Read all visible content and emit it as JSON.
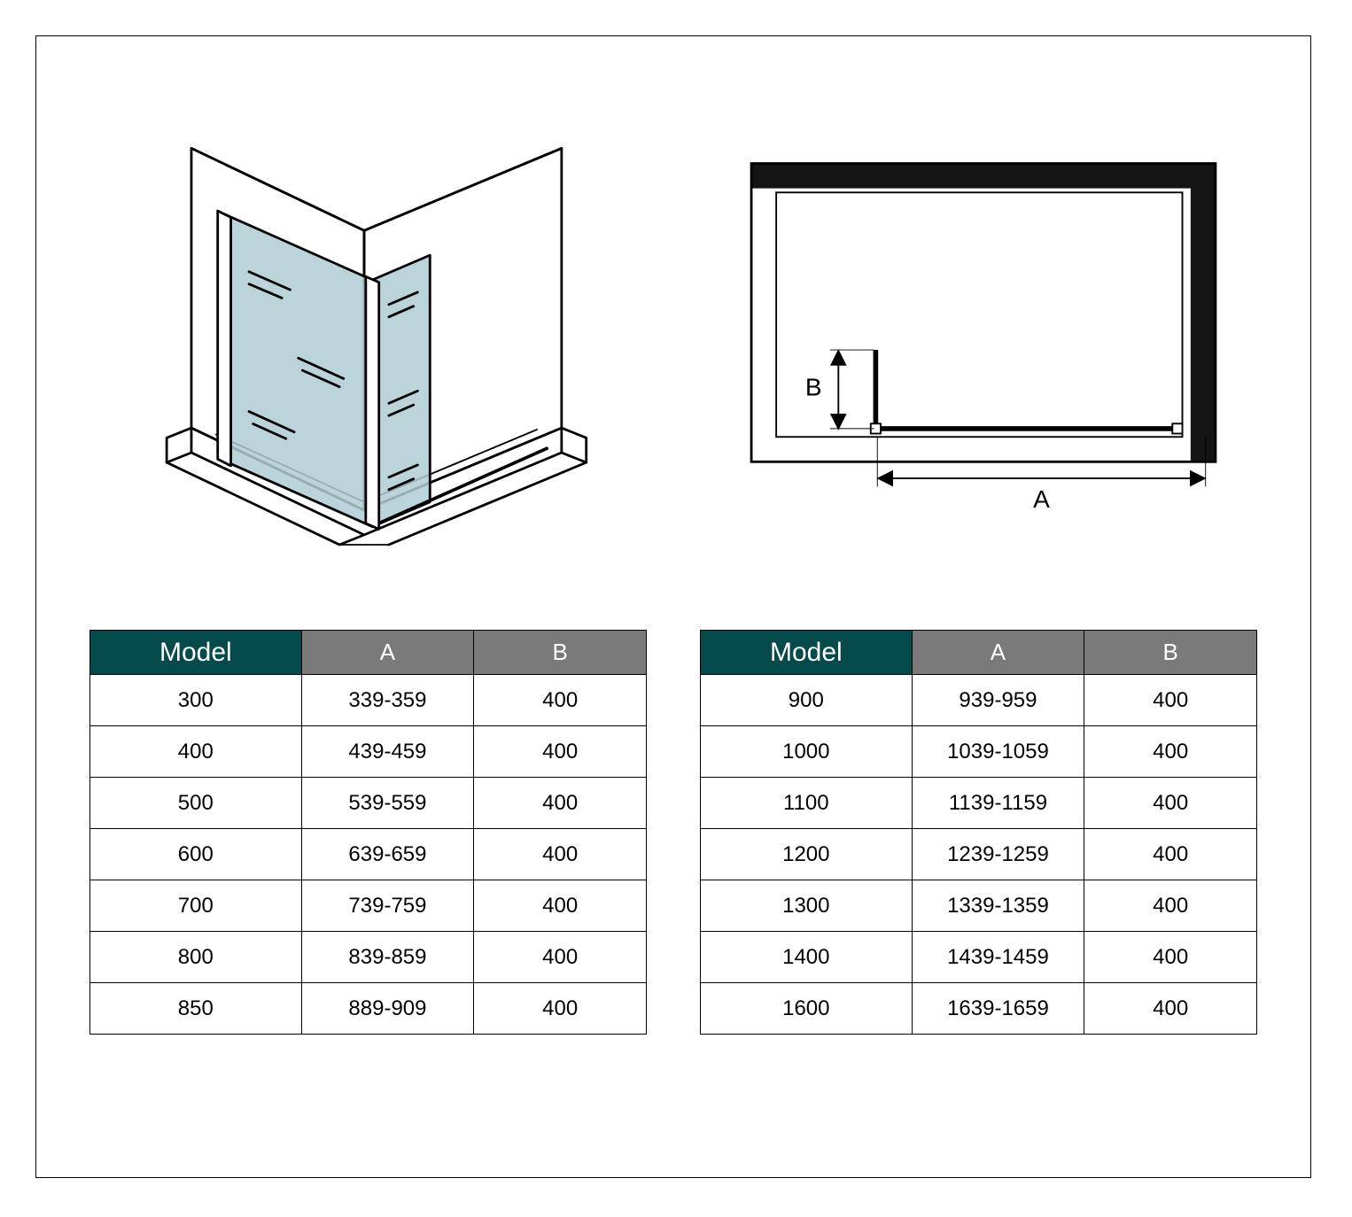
{
  "diagram": {
    "glass_color": "#aeccd2",
    "stroke": "#000000",
    "stroke_width": 3,
    "label_A": "A",
    "label_B": "B",
    "frame_color": "#141414"
  },
  "table_left": {
    "headers": {
      "model": "Model",
      "A": "A",
      "B": "B"
    },
    "header_colors": {
      "model_bg": "#064b4c",
      "col_bg": "#7a7a7a",
      "text": "#ffffff"
    },
    "rows": [
      {
        "model": "300",
        "A": "339-359",
        "B": "400"
      },
      {
        "model": "400",
        "A": "439-459",
        "B": "400"
      },
      {
        "model": "500",
        "A": "539-559",
        "B": "400"
      },
      {
        "model": "600",
        "A": "639-659",
        "B": "400"
      },
      {
        "model": "700",
        "A": "739-759",
        "B": "400"
      },
      {
        "model": "800",
        "A": "839-859",
        "B": "400"
      },
      {
        "model": "850",
        "A": "889-909",
        "B": "400"
      }
    ]
  },
  "table_right": {
    "headers": {
      "model": "Model",
      "A": "A",
      "B": "B"
    },
    "header_colors": {
      "model_bg": "#064b4c",
      "col_bg": "#7a7a7a",
      "text": "#ffffff"
    },
    "rows": [
      {
        "model": "900",
        "A": "939-959",
        "B": "400"
      },
      {
        "model": "1000",
        "A": "1039-1059",
        "B": "400"
      },
      {
        "model": "1100",
        "A": "1139-1159",
        "B": "400"
      },
      {
        "model": "1200",
        "A": "1239-1259",
        "B": "400"
      },
      {
        "model": "1300",
        "A": "1339-1359",
        "B": "400"
      },
      {
        "model": "1400",
        "A": "1439-1459",
        "B": "400"
      },
      {
        "model": "1600",
        "A": "1639-1659",
        "B": "400"
      }
    ]
  }
}
